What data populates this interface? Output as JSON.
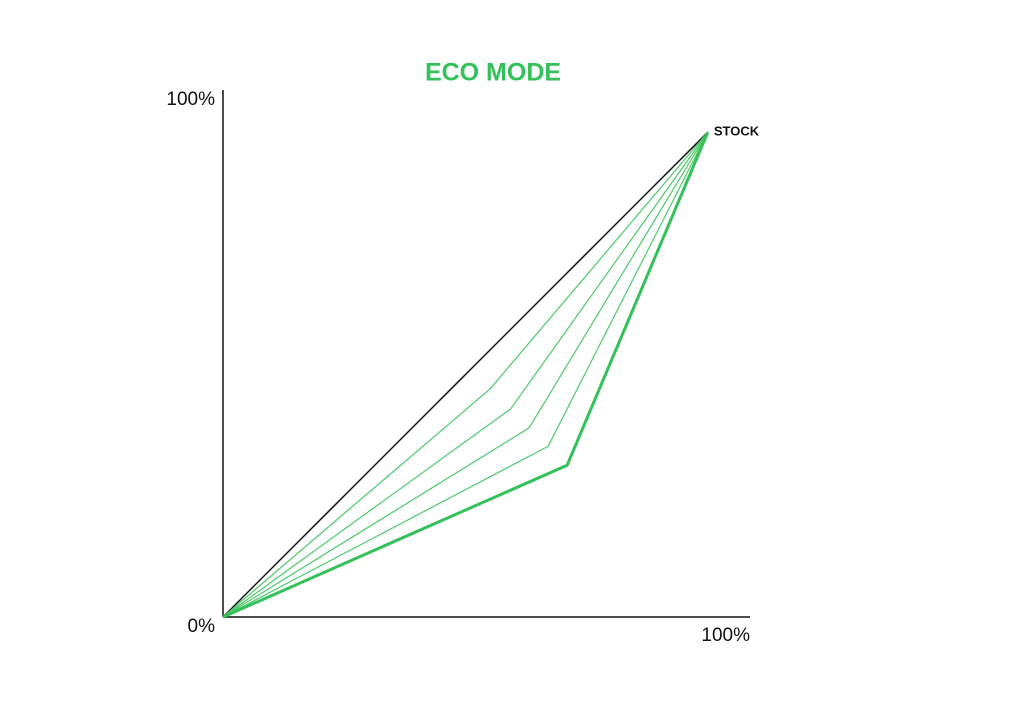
{
  "chart_data": {
    "type": "line",
    "title": "ECO MODE",
    "title_color": "#34c15a",
    "annotations": [
      "STOCK"
    ],
    "xlim": [
      0,
      100
    ],
    "ylim": [
      0,
      100
    ],
    "xticks": [
      {
        "value": 100,
        "label": "100%"
      }
    ],
    "yticks": [
      {
        "value": 0,
        "label": "0%"
      },
      {
        "value": 100,
        "label": "100%"
      }
    ],
    "grid": false,
    "series": [
      {
        "color": "#111111",
        "line_width": 1.5,
        "x": [
          0,
          92
        ],
        "values": [
          0,
          92
        ]
      },
      {
        "color": "#4cc96a",
        "line_width": 1.2,
        "x": [
          0,
          50.7,
          92
        ],
        "values": [
          0,
          43.3,
          92
        ]
      },
      {
        "color": "#4cc96a",
        "line_width": 1.2,
        "x": [
          0,
          54.6,
          92
        ],
        "values": [
          0,
          39.5,
          92
        ]
      },
      {
        "color": "#4cc96a",
        "line_width": 1.2,
        "x": [
          0,
          58.1,
          92
        ],
        "values": [
          0,
          35.9,
          92
        ]
      },
      {
        "color": "#4cc96a",
        "line_width": 1.2,
        "x": [
          0,
          61.7,
          92
        ],
        "values": [
          0,
          32.4,
          92
        ]
      },
      {
        "color": "#34c15a",
        "line_width": 3,
        "x": [
          0,
          65.3,
          92
        ],
        "values": [
          0,
          28.8,
          92
        ]
      }
    ]
  }
}
